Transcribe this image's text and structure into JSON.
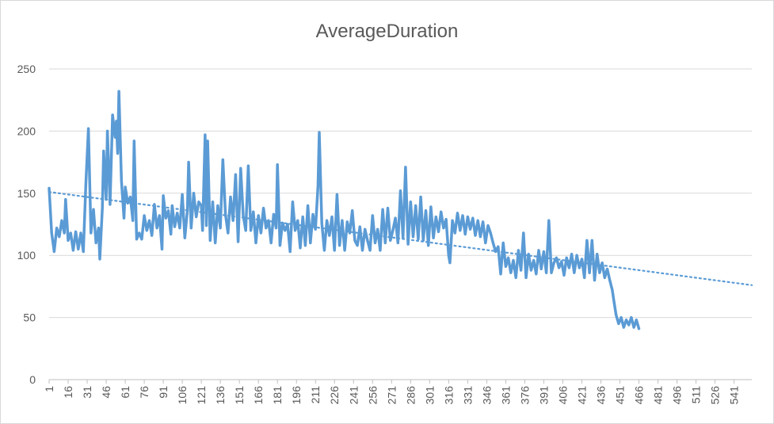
{
  "chart_data": {
    "type": "line",
    "title": "AverageDuration",
    "xlabel": "",
    "ylabel": "",
    "ylim": [
      0,
      250
    ],
    "yticks": [
      0,
      50,
      100,
      150,
      200,
      250
    ],
    "xlim": [
      1,
      555
    ],
    "xticks": [
      1,
      16,
      31,
      46,
      61,
      76,
      91,
      106,
      121,
      136,
      151,
      166,
      181,
      196,
      211,
      226,
      241,
      256,
      271,
      286,
      301,
      316,
      331,
      346,
      361,
      376,
      391,
      406,
      421,
      436,
      451,
      466,
      481,
      496,
      511,
      526,
      541
    ],
    "grid": "horizontal",
    "legend": "none",
    "series": [
      {
        "color": "#5b9bd5",
        "points": [
          [
            1,
            154
          ],
          [
            3,
            118
          ],
          [
            5,
            103
          ],
          [
            7,
            122
          ],
          [
            9,
            115
          ],
          [
            11,
            128
          ],
          [
            13,
            118
          ],
          [
            14,
            145
          ],
          [
            16,
            112
          ],
          [
            18,
            118
          ],
          [
            20,
            104
          ],
          [
            22,
            119
          ],
          [
            24,
            105
          ],
          [
            26,
            118
          ],
          [
            28,
            103
          ],
          [
            30,
            158
          ],
          [
            32,
            202
          ],
          [
            34,
            118
          ],
          [
            36,
            137
          ],
          [
            38,
            110
          ],
          [
            40,
            122
          ],
          [
            41,
            97
          ],
          [
            43,
            138
          ],
          [
            44,
            184
          ],
          [
            46,
            145
          ],
          [
            47,
            200
          ],
          [
            49,
            141
          ],
          [
            51,
            213
          ],
          [
            53,
            195
          ],
          [
            54,
            208
          ],
          [
            55,
            182
          ],
          [
            56,
            232
          ],
          [
            58,
            160
          ],
          [
            60,
            130
          ],
          [
            61,
            155
          ],
          [
            63,
            142
          ],
          [
            65,
            147
          ],
          [
            67,
            128
          ],
          [
            68,
            192
          ],
          [
            70,
            113
          ],
          [
            72,
            118
          ],
          [
            74,
            113
          ],
          [
            76,
            132
          ],
          [
            78,
            120
          ],
          [
            80,
            128
          ],
          [
            82,
            116
          ],
          [
            84,
            141
          ],
          [
            86,
            122
          ],
          [
            88,
            132
          ],
          [
            90,
            105
          ],
          [
            91,
            148
          ],
          [
            93,
            130
          ],
          [
            95,
            136
          ],
          [
            97,
            117
          ],
          [
            98,
            140
          ],
          [
            100,
            123
          ],
          [
            102,
            134
          ],
          [
            104,
            122
          ],
          [
            106,
            149
          ],
          [
            108,
            114
          ],
          [
            110,
            136
          ],
          [
            111,
            175
          ],
          [
            113,
            122
          ],
          [
            115,
            150
          ],
          [
            117,
            131
          ],
          [
            119,
            143
          ],
          [
            121,
            140
          ],
          [
            122,
            120
          ],
          [
            124,
            197
          ],
          [
            125,
            124
          ],
          [
            126,
            192
          ],
          [
            128,
            112
          ],
          [
            130,
            143
          ],
          [
            132,
            110
          ],
          [
            134,
            140
          ],
          [
            136,
            122
          ],
          [
            138,
            177
          ],
          [
            140,
            133
          ],
          [
            142,
            118
          ],
          [
            144,
            147
          ],
          [
            146,
            128
          ],
          [
            148,
            165
          ],
          [
            150,
            111
          ],
          [
            152,
            170
          ],
          [
            154,
            132
          ],
          [
            156,
            120
          ],
          [
            158,
            172
          ],
          [
            160,
            120
          ],
          [
            162,
            135
          ],
          [
            164,
            110
          ],
          [
            166,
            132
          ],
          [
            168,
            118
          ],
          [
            170,
            138
          ],
          [
            172,
            122
          ],
          [
            174,
            128
          ],
          [
            176,
            110
          ],
          [
            178,
            133
          ],
          [
            180,
            122
          ],
          [
            181,
            173
          ],
          [
            183,
            108
          ],
          [
            185,
            126
          ],
          [
            187,
            120
          ],
          [
            189,
            125
          ],
          [
            191,
            103
          ],
          [
            193,
            143
          ],
          [
            195,
            120
          ],
          [
            197,
            128
          ],
          [
            199,
            106
          ],
          [
            201,
            131
          ],
          [
            203,
            108
          ],
          [
            205,
            140
          ],
          [
            207,
            110
          ],
          [
            209,
            133
          ],
          [
            211,
            121
          ],
          [
            213,
            156
          ],
          [
            214,
            199
          ],
          [
            216,
            126
          ],
          [
            218,
            104
          ],
          [
            220,
            128
          ],
          [
            222,
            116
          ],
          [
            224,
            131
          ],
          [
            226,
            104
          ],
          [
            228,
            149
          ],
          [
            230,
            108
          ],
          [
            232,
            128
          ],
          [
            234,
            104
          ],
          [
            236,
            127
          ],
          [
            238,
            118
          ],
          [
            240,
            136
          ],
          [
            242,
            112
          ],
          [
            244,
            108
          ],
          [
            246,
            123
          ],
          [
            248,
            104
          ],
          [
            250,
            121
          ],
          [
            252,
            112
          ],
          [
            254,
            104
          ],
          [
            256,
            132
          ],
          [
            258,
            110
          ],
          [
            260,
            121
          ],
          [
            262,
            104
          ],
          [
            264,
            137
          ],
          [
            266,
            110
          ],
          [
            268,
            138
          ],
          [
            270,
            112
          ],
          [
            272,
            120
          ],
          [
            274,
            130
          ],
          [
            276,
            110
          ],
          [
            278,
            152
          ],
          [
            280,
            114
          ],
          [
            282,
            171
          ],
          [
            284,
            109
          ],
          [
            286,
            143
          ],
          [
            288,
            115
          ],
          [
            290,
            140
          ],
          [
            292,
            113
          ],
          [
            294,
            147
          ],
          [
            296,
            112
          ],
          [
            298,
            136
          ],
          [
            300,
            108
          ],
          [
            302,
            139
          ],
          [
            304,
            114
          ],
          [
            306,
            131
          ],
          [
            308,
            119
          ],
          [
            310,
            135
          ],
          [
            312,
            122
          ],
          [
            314,
            129
          ],
          [
            316,
            100
          ],
          [
            317,
            94
          ],
          [
            319,
            128
          ],
          [
            321,
            118
          ],
          [
            323,
            134
          ],
          [
            325,
            120
          ],
          [
            327,
            132
          ],
          [
            329,
            117
          ],
          [
            331,
            131
          ],
          [
            333,
            121
          ],
          [
            335,
            130
          ],
          [
            337,
            116
          ],
          [
            339,
            128
          ],
          [
            341,
            115
          ],
          [
            343,
            127
          ],
          [
            345,
            110
          ],
          [
            347,
            124
          ],
          [
            349,
            118
          ],
          [
            351,
            110
          ],
          [
            353,
            103
          ],
          [
            355,
            107
          ],
          [
            357,
            85
          ],
          [
            359,
            110
          ],
          [
            361,
            91
          ],
          [
            363,
            98
          ],
          [
            365,
            86
          ],
          [
            367,
            96
          ],
          [
            369,
            82
          ],
          [
            371,
            104
          ],
          [
            373,
            88
          ],
          [
            375,
            118
          ],
          [
            377,
            82
          ],
          [
            379,
            101
          ],
          [
            381,
            88
          ],
          [
            383,
            96
          ],
          [
            385,
            85
          ],
          [
            387,
            104
          ],
          [
            389,
            89
          ],
          [
            391,
            103
          ],
          [
            393,
            86
          ],
          [
            395,
            128
          ],
          [
            397,
            86
          ],
          [
            399,
            94
          ],
          [
            401,
            98
          ],
          [
            403,
            90
          ],
          [
            405,
            95
          ],
          [
            407,
            84
          ],
          [
            409,
            98
          ],
          [
            411,
            90
          ],
          [
            413,
            101
          ],
          [
            415,
            86
          ],
          [
            417,
            100
          ],
          [
            419,
            90
          ],
          [
            421,
            97
          ],
          [
            423,
            82
          ],
          [
            425,
            112
          ],
          [
            427,
            86
          ],
          [
            429,
            112
          ],
          [
            431,
            80
          ],
          [
            433,
            101
          ],
          [
            435,
            86
          ],
          [
            437,
            94
          ],
          [
            439,
            82
          ],
          [
            441,
            89
          ],
          [
            443,
            80
          ],
          [
            445,
            72
          ],
          [
            446,
            65
          ],
          [
            448,
            52
          ],
          [
            450,
            45
          ],
          [
            452,
            50
          ],
          [
            454,
            42
          ],
          [
            456,
            48
          ],
          [
            458,
            44
          ],
          [
            460,
            50
          ],
          [
            462,
            42
          ],
          [
            464,
            48
          ],
          [
            466,
            41
          ]
        ]
      },
      {
        "trendline": "linear",
        "style": "dotted",
        "color": "#5b9bd5",
        "points": [
          [
            1,
            151
          ],
          [
            555,
            76
          ]
        ]
      }
    ]
  }
}
